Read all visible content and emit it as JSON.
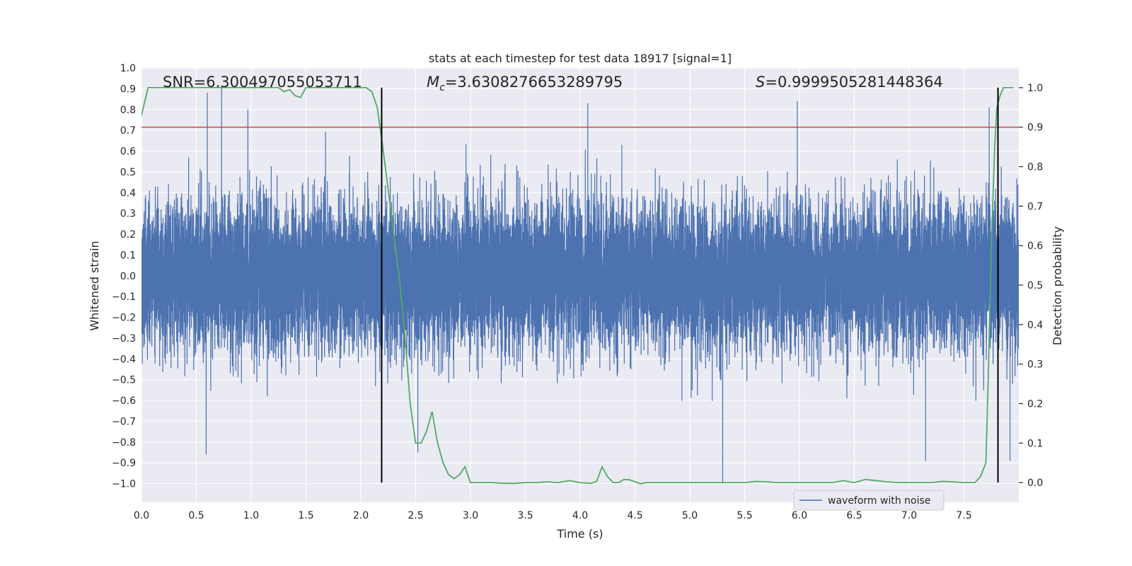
{
  "chart_data": {
    "type": "line",
    "title": "stats at each timestep for test data 18917 [signal=1]",
    "xlabel": "Time (s)",
    "ylabel": "Whitened strain",
    "y2label": "Detection probability",
    "xlim": [
      0.0,
      8.0
    ],
    "ylim": [
      -1.09,
      1.0
    ],
    "y2lim": [
      -0.05,
      1.05
    ],
    "xticks": [
      "0.0",
      "0.5",
      "1.0",
      "1.5",
      "2.0",
      "2.5",
      "3.0",
      "3.5",
      "4.0",
      "4.5",
      "5.0",
      "5.5",
      "6.0",
      "6.5",
      "7.0",
      "7.5"
    ],
    "yticks": [
      "1.0",
      "0.9",
      "0.8",
      "0.7",
      "0.6",
      "0.5",
      "0.4",
      "0.3",
      "0.2",
      "0.1",
      "0.0",
      "−0.1",
      "−0.2",
      "−0.3",
      "−0.4",
      "−0.5",
      "−0.6",
      "−0.7",
      "−0.8",
      "−0.9",
      "−1.0"
    ],
    "y2ticks": [
      "1.0",
      "0.9",
      "0.8",
      "0.7",
      "0.6",
      "0.5",
      "0.4",
      "0.3",
      "0.2",
      "0.1",
      "0.0"
    ],
    "annotations": {
      "snr": "SNR=6.300497055053711",
      "mc_symbol": "M",
      "mc_sub": "c",
      "mc_value": "=3.6308276653289795",
      "s_symbol": "S",
      "s_value": "=0.9999505281448364"
    },
    "threshold": {
      "value": 0.9,
      "axis": "y2",
      "color": "#c44e52"
    },
    "vertical_lines": {
      "x": [
        2.19,
        7.81
      ],
      "color": "#000000"
    },
    "legend": {
      "label": "waveform with noise",
      "placement": "lower-right"
    },
    "series": [
      {
        "name": "waveform with noise",
        "axis": "y",
        "color": "#4c72b0",
        "sample_rate": 2048,
        "duration": 8.0,
        "seed": 18917,
        "typical_range": [
          -0.55,
          0.55
        ],
        "peak_max": [
          [
            0.6,
            0.88
          ],
          [
            0.73,
            0.91
          ],
          [
            0.97,
            0.8
          ],
          [
            4.07,
            0.83
          ],
          [
            5.98,
            0.84
          ],
          [
            7.73,
            0.81
          ]
        ],
        "peak_min": [
          [
            0.59,
            -0.86
          ],
          [
            2.52,
            -0.85
          ],
          [
            5.3,
            -1.0
          ],
          [
            7.15,
            -0.89
          ],
          [
            7.92,
            -0.89
          ]
        ]
      },
      {
        "name": "detection probability",
        "axis": "y2",
        "color": "#55a868",
        "x": [
          0.0,
          0.06,
          0.12,
          0.2,
          0.3,
          0.4,
          0.5,
          0.6,
          0.7,
          0.8,
          0.9,
          1.0,
          1.1,
          1.2,
          1.25,
          1.3,
          1.35,
          1.4,
          1.45,
          1.5,
          1.55,
          1.6,
          1.7,
          1.8,
          1.9,
          2.0,
          2.05,
          2.1,
          2.15,
          2.2,
          2.25,
          2.3,
          2.35,
          2.4,
          2.45,
          2.5,
          2.55,
          2.6,
          2.65,
          2.7,
          2.75,
          2.8,
          2.85,
          2.9,
          2.95,
          3.0,
          3.1,
          3.2,
          3.3,
          3.4,
          3.5,
          3.6,
          3.7,
          3.8,
          3.9,
          4.0,
          4.1,
          4.15,
          4.2,
          4.25,
          4.3,
          4.35,
          4.4,
          4.45,
          4.5,
          4.55,
          4.6,
          4.7,
          4.8,
          4.9,
          5.0,
          5.1,
          5.2,
          5.3,
          5.4,
          5.5,
          5.6,
          5.7,
          5.8,
          5.9,
          6.0,
          6.1,
          6.2,
          6.3,
          6.4,
          6.5,
          6.6,
          6.7,
          6.8,
          6.9,
          7.0,
          7.1,
          7.2,
          7.3,
          7.4,
          7.5,
          7.6,
          7.65,
          7.7,
          7.72,
          7.75,
          7.78,
          7.8,
          7.83,
          7.86,
          7.9,
          7.95
        ],
        "values": [
          0.93,
          1.0,
          1.0,
          1.0,
          1.0,
          1.0,
          1.0,
          1.0,
          1.0,
          1.0,
          1.0,
          1.0,
          1.0,
          1.0,
          1.0,
          0.99,
          0.995,
          0.98,
          0.975,
          1.0,
          1.0,
          1.0,
          1.0,
          1.0,
          1.0,
          1.0,
          1.0,
          0.99,
          0.95,
          0.85,
          0.74,
          0.63,
          0.52,
          0.38,
          0.2,
          0.1,
          0.1,
          0.13,
          0.18,
          0.1,
          0.05,
          0.02,
          0.01,
          0.02,
          0.04,
          0.0,
          0.0,
          0.0,
          -0.002,
          -0.002,
          0.0,
          0.0,
          0.002,
          0.0,
          0.005,
          0.0,
          -0.002,
          0.003,
          0.04,
          0.015,
          0.0,
          0.0,
          0.008,
          0.007,
          0.002,
          -0.003,
          0.0,
          0.0,
          0.0,
          0.0,
          0.0,
          0.0,
          0.0,
          0.0,
          0.0,
          0.0,
          0.003,
          0.002,
          0.0,
          0.0,
          0.0,
          0.0,
          0.0,
          0.0,
          0.005,
          0.0,
          0.008,
          0.005,
          0.002,
          0.0,
          0.0,
          0.0,
          0.0,
          0.003,
          0.002,
          0.0,
          0.0,
          0.015,
          0.05,
          0.25,
          0.6,
          0.85,
          0.95,
          0.98,
          1.0,
          1.0,
          1.0
        ]
      }
    ]
  }
}
